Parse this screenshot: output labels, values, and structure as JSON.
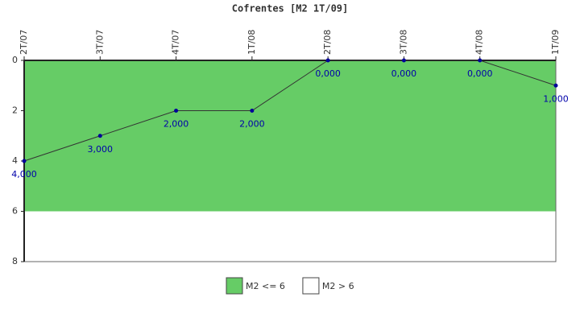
{
  "chart_data": {
    "type": "line",
    "title": "Cofrentes [M2 1T/09]",
    "categories": [
      "2T/07",
      "3T/07",
      "4T/07",
      "1T/08",
      "2T/08",
      "3T/08",
      "4T/08",
      "1T/09"
    ],
    "values": [
      4,
      3,
      2,
      2,
      0,
      0,
      0,
      1
    ],
    "value_labels": [
      "4,000",
      "3,000",
      "2,000",
      "2,000",
      "0,000",
      "0,000",
      "0,000",
      "1,000"
    ],
    "color": "#333333",
    "marker_color": "#000099",
    "ylim": [
      0,
      8
    ],
    "yticks": [
      0,
      2,
      4,
      6,
      8
    ],
    "y_inverted": true,
    "bands": [
      {
        "name": "M2 <= 6",
        "color": "#66cc66",
        "from": 0,
        "to": 6
      },
      {
        "name": "M2 > 6",
        "color": "#ffffff",
        "from": 6,
        "to": 8
      }
    ]
  }
}
